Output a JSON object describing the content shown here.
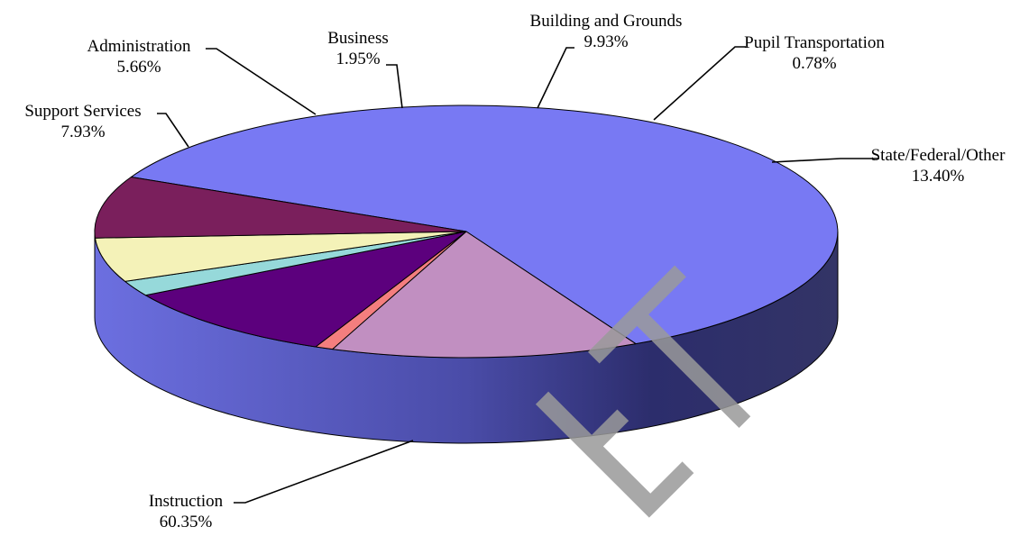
{
  "chart_data": {
    "type": "pie",
    "title": "",
    "style": "3d",
    "slices": [
      {
        "label": "Instruction",
        "value": 60.35,
        "value_label": "60.35%",
        "color": "#7879F3"
      },
      {
        "label": "State/Federal/Other",
        "value": 13.4,
        "value_label": "13.40%",
        "color": "#C18FC1"
      },
      {
        "label": "Pupil Transportation",
        "value": 0.78,
        "value_label": "0.78%",
        "color": "#F47E7E"
      },
      {
        "label": "Building and Grounds",
        "value": 9.93,
        "value_label": "9.93%",
        "color": "#5C007D"
      },
      {
        "label": "Business",
        "value": 1.95,
        "value_label": "1.95%",
        "color": "#96D9DA"
      },
      {
        "label": "Administration",
        "value": 5.66,
        "value_label": "5.66%",
        "color": "#F4F2B8"
      },
      {
        "label": "Support Services",
        "value": 7.93,
        "value_label": "7.93%",
        "color": "#7A1F5C"
      }
    ]
  },
  "watermark": {
    "text": "ET",
    "color": "#9a9a9a"
  }
}
